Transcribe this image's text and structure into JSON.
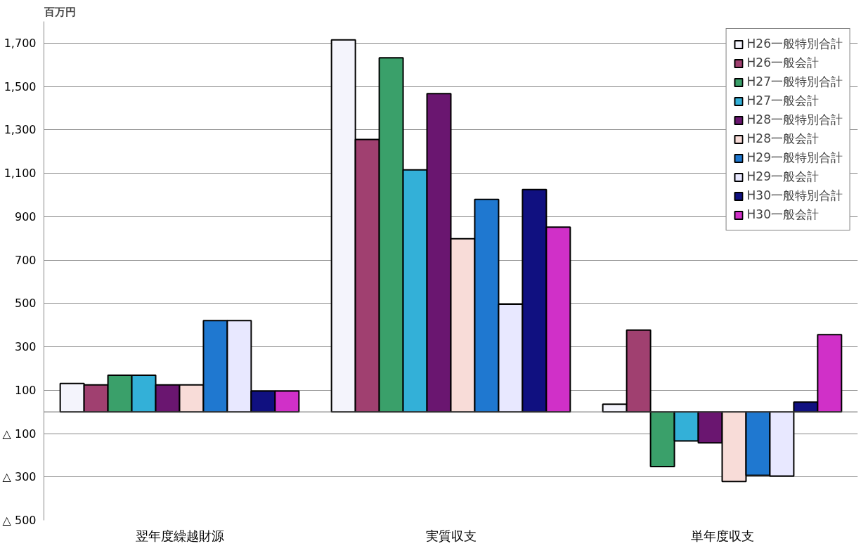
{
  "chart_data": {
    "type": "bar",
    "ylabel": "百万円",
    "categories": [
      "翌年度繰越財源",
      "実質収支",
      "単年度収支"
    ],
    "series": [
      {
        "name": "H26一般特別合計",
        "color": "#f4f4fc",
        "values": [
          131,
          1715,
          35
        ]
      },
      {
        "name": "H26一般会計",
        "color": "#a04070",
        "values": [
          124,
          1256,
          377
        ]
      },
      {
        "name": "H27一般特別合計",
        "color": "#3aa06a",
        "values": [
          169,
          1632,
          -252
        ]
      },
      {
        "name": "H27一般会計",
        "color": "#33b0d8",
        "values": [
          169,
          1116,
          -134
        ]
      },
      {
        "name": "H28一般特別合計",
        "color": "#6a1670",
        "values": [
          124,
          1467,
          -143
        ]
      },
      {
        "name": "H28一般会計",
        "color": "#f8dcd8",
        "values": [
          124,
          798,
          -321
        ]
      },
      {
        "name": "H29一般特別合計",
        "color": "#1f78d0",
        "values": [
          421,
          980,
          -293
        ]
      },
      {
        "name": "H29一般会計",
        "color": "#e8e8ff",
        "values": [
          421,
          496,
          -296
        ]
      },
      {
        "name": "H30一般特別合計",
        "color": "#101080",
        "values": [
          96,
          1025,
          45
        ]
      },
      {
        "name": "H30一般会計",
        "color": "#d030c8",
        "values": [
          96,
          852,
          356
        ]
      }
    ],
    "ylim": [
      -500,
      1800
    ],
    "yticks": [
      {
        "value": -500,
        "label": "△ 500"
      },
      {
        "value": -300,
        "label": "△ 300"
      },
      {
        "value": -100,
        "label": "△ 100"
      },
      100,
      300,
      500,
      700,
      900,
      {
        "value": 1100,
        "label": "1,100"
      },
      {
        "value": 1300,
        "label": "1,300"
      },
      {
        "value": 1500,
        "label": "1,500"
      },
      {
        "value": 1700,
        "label": "1,700"
      }
    ],
    "grid": "y",
    "legend": "top right"
  }
}
